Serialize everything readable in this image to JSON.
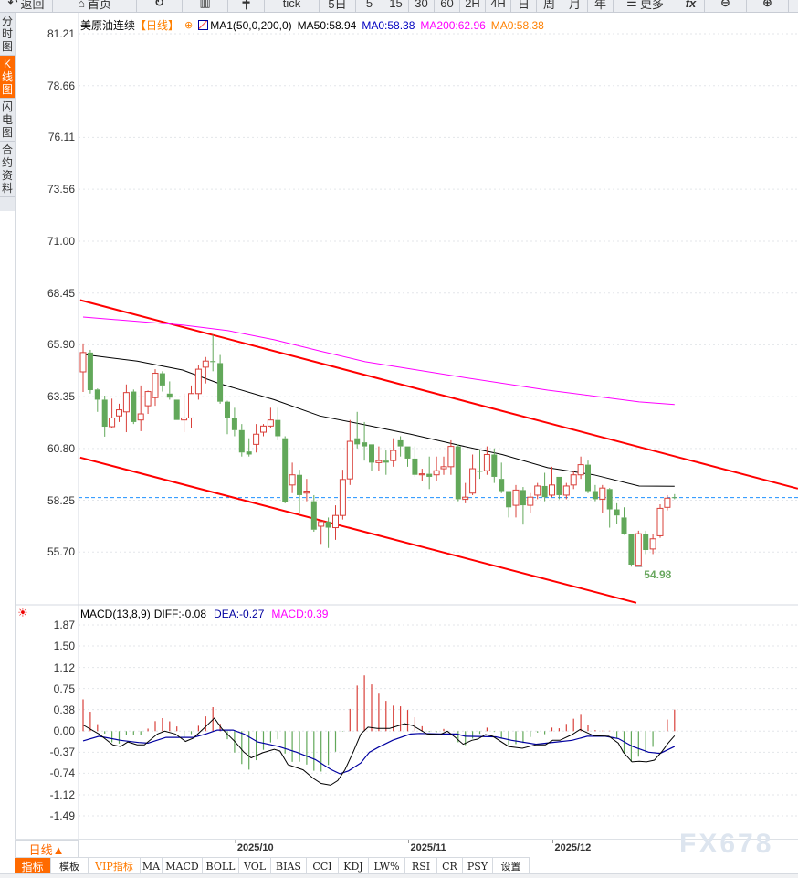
{
  "toolbar": {
    "items": [
      {
        "label": "返回",
        "icon": "back-arrow-icon",
        "w": 58
      },
      {
        "label": "首页",
        "icon": "home-icon",
        "w": 92
      },
      {
        "label": "",
        "icon": "refresh-icon",
        "w": 50
      },
      {
        "label": "",
        "icon": "bar-chart-icon",
        "w": 50
      },
      {
        "label": "",
        "icon": "candlestick-icon",
        "w": 40
      },
      {
        "label": "tick",
        "icon": "",
        "w": 60
      },
      {
        "label": "5日",
        "icon": "",
        "w": 40
      },
      {
        "label": "5",
        "icon": "",
        "w": 30
      },
      {
        "label": "15",
        "icon": "",
        "w": 28
      },
      {
        "label": "30",
        "icon": "",
        "w": 28
      },
      {
        "label": "60",
        "icon": "",
        "w": 28
      },
      {
        "label": "2H",
        "icon": "",
        "w": 28
      },
      {
        "label": "4H",
        "icon": "",
        "w": 28
      },
      {
        "label": "日",
        "icon": "",
        "w": 28
      },
      {
        "label": "周",
        "icon": "",
        "w": 28
      },
      {
        "label": "月",
        "icon": "",
        "w": 28
      },
      {
        "label": "年",
        "icon": "",
        "w": 28
      },
      {
        "label": "更多",
        "icon": "menu-icon",
        "w": 70
      },
      {
        "label": "fx",
        "icon": "",
        "w": 30
      },
      {
        "label": "",
        "icon": "zoom-out-icon",
        "w": 46
      },
      {
        "label": "",
        "icon": "zoom-in-icon",
        "w": 46
      }
    ]
  },
  "sidebar": {
    "items": [
      {
        "label": "分时图",
        "active": false
      },
      {
        "label": "K线图",
        "active": true
      },
      {
        "label": "闪电图",
        "active": false
      },
      {
        "label": "合约资料",
        "active": false
      }
    ]
  },
  "legend": {
    "symbol": "美原油连续",
    "period": "【日线】",
    "indicator": "MA1(50,0,200,0)",
    "ma50": "MA50:58.94",
    "ma0a": "MA0:58.38",
    "ma200": "MA200:62.96",
    "ma0b": "MA0:58.38"
  },
  "macd_legend": {
    "name": "MACD(13,8,9)",
    "diff": "DIFF:-0.08",
    "dea": "DEA:-0.27",
    "macd": "MACD:0.39"
  },
  "colors": {
    "up": "#d9403a",
    "down": "#62a85a",
    "ma50": "#000000",
    "ma200": "#ff00ff",
    "trend": "#ff0000",
    "last": "#1e90ff",
    "diff": "#000000",
    "dea": "#0000a0",
    "accent": "#ff6a00",
    "blue_label": "#0000c0",
    "orange_label": "#ff8000"
  },
  "chart_data": [
    {
      "type": "candlestick",
      "y_ticks": [
        "81.21",
        "78.66",
        "76.11",
        "73.56",
        "71.00",
        "68.45",
        "65.90",
        "63.35",
        "60.80",
        "58.25",
        "55.70"
      ],
      "ylim": [
        55.7,
        81.21
      ],
      "x_month_labels": [
        {
          "label": "2025/10",
          "index": 21
        },
        {
          "label": "2025/11",
          "index": 45
        },
        {
          "label": "2025/12",
          "index": 65
        }
      ],
      "last_price": 58.38,
      "min_label": "54.98",
      "min_index": 77,
      "ohlc": [
        [
          64.57,
          65.52,
          65.97,
          63.58
        ],
        [
          65.52,
          63.67,
          65.65,
          63.5
        ],
        [
          63.7,
          63.2,
          63.75,
          62.6
        ],
        [
          63.2,
          61.87,
          63.4,
          61.38
        ],
        [
          61.87,
          62.3,
          63.25,
          61.8
        ],
        [
          62.4,
          62.7,
          63.0,
          62.1
        ],
        [
          62.6,
          63.55,
          63.95,
          61.6
        ],
        [
          63.6,
          62.1,
          63.7,
          62.0
        ],
        [
          62.2,
          62.5,
          63.9,
          61.65
        ],
        [
          62.9,
          63.6,
          63.65,
          62.5
        ],
        [
          63.3,
          64.5,
          64.7,
          62.9
        ],
        [
          64.5,
          63.9,
          64.6,
          63.6
        ],
        [
          63.5,
          63.3,
          64.1,
          63.2
        ],
        [
          63.2,
          62.2,
          63.2,
          62.2
        ],
        [
          62.2,
          62.3,
          63.5,
          61.6
        ],
        [
          62.3,
          63.5,
          63.9,
          61.8
        ],
        [
          63.5,
          64.7,
          64.9,
          63.2
        ],
        [
          64.8,
          65.1,
          65.3,
          64.0
        ],
        [
          65.1,
          65.05,
          66.4,
          64.6
        ],
        [
          65.0,
          63.1,
          65.4,
          63.0
        ],
        [
          63.1,
          62.3,
          63.15,
          61.5
        ],
        [
          62.3,
          61.7,
          62.8,
          61.4
        ],
        [
          61.7,
          60.6,
          62.0,
          60.4
        ],
        [
          60.65,
          60.5,
          61.3,
          60.4
        ],
        [
          61.0,
          61.5,
          62.0,
          60.6
        ],
        [
          61.6,
          61.9,
          62.0,
          61.4
        ],
        [
          61.9,
          62.2,
          62.8,
          61.8
        ],
        [
          62.2,
          61.4,
          62.8,
          61.2
        ],
        [
          61.3,
          58.14,
          61.4,
          58.1
        ],
        [
          59.0,
          59.5,
          60.1,
          58.6
        ],
        [
          59.5,
          58.5,
          59.75,
          57.6
        ],
        [
          58.6,
          58.7,
          59.3,
          58.2
        ],
        [
          58.2,
          56.8,
          58.5,
          56.7
        ],
        [
          56.97,
          57.2,
          57.25,
          56.1
        ],
        [
          57.2,
          56.9,
          57.4,
          55.9
        ],
        [
          56.9,
          57.5,
          58.0,
          56.3
        ],
        [
          57.5,
          59.27,
          59.75,
          57.3
        ],
        [
          59.3,
          61.15,
          62.2,
          59.0
        ],
        [
          61.3,
          61.0,
          62.6,
          60.8
        ],
        [
          61.1,
          60.9,
          62.1,
          60.2
        ],
        [
          61.0,
          60.1,
          61.0,
          59.7
        ],
        [
          60.1,
          60.2,
          60.9,
          59.7
        ],
        [
          60.2,
          60.1,
          60.7,
          59.5
        ],
        [
          60.2,
          60.7,
          61.3,
          59.9
        ],
        [
          61.2,
          60.9,
          61.4,
          60.4
        ],
        [
          60.9,
          60.3,
          60.9,
          59.9
        ],
        [
          60.3,
          59.5,
          60.9,
          59.4
        ],
        [
          59.5,
          59.55,
          59.8,
          59.2
        ],
        [
          59.55,
          59.4,
          60.4,
          58.8
        ],
        [
          59.5,
          59.7,
          60.4,
          59.2
        ],
        [
          59.8,
          59.9,
          60.4,
          59.5
        ],
        [
          59.9,
          60.9,
          61.2,
          59.5
        ],
        [
          60.9,
          58.3,
          61.0,
          58.2
        ],
        [
          58.3,
          58.4,
          59.1,
          58.1
        ],
        [
          58.6,
          59.8,
          60.5,
          58.5
        ],
        [
          59.7,
          59.65,
          60.7,
          59.3
        ],
        [
          59.7,
          60.5,
          60.9,
          59.5
        ],
        [
          60.5,
          59.4,
          60.8,
          59.1
        ],
        [
          59.3,
          58.7,
          60.1,
          58.6
        ],
        [
          58.7,
          57.9,
          58.7,
          57.4
        ],
        [
          58.0,
          58.75,
          59.0,
          57.4
        ],
        [
          58.75,
          58.0,
          58.9,
          57.05
        ],
        [
          58.0,
          58.4,
          58.6,
          57.6
        ],
        [
          58.5,
          58.95,
          59.1,
          58.3
        ],
        [
          58.95,
          58.4,
          59.6,
          58.2
        ],
        [
          58.5,
          59.0,
          59.9,
          58.4
        ],
        [
          59.4,
          58.5,
          59.4,
          58.3
        ],
        [
          58.5,
          58.95,
          59.1,
          58.3
        ],
        [
          59.0,
          59.5,
          59.7,
          58.8
        ],
        [
          59.5,
          60.0,
          60.4,
          59.3
        ],
        [
          60.0,
          58.7,
          60.2,
          58.6
        ],
        [
          58.7,
          58.3,
          59.0,
          58.2
        ],
        [
          58.3,
          58.85,
          59.0,
          57.6
        ],
        [
          58.8,
          57.8,
          58.85,
          56.9
        ],
        [
          57.8,
          57.5,
          58.1,
          57.1
        ],
        [
          57.4,
          56.6,
          57.9,
          56.55
        ],
        [
          56.6,
          55.08,
          56.6,
          54.98
        ],
        [
          55.05,
          56.6,
          56.75,
          55.0
        ],
        [
          56.6,
          55.8,
          56.75,
          55.6
        ],
        [
          55.85,
          56.35,
          56.6,
          55.6
        ],
        [
          56.5,
          57.85,
          58.05,
          56.4
        ],
        [
          57.9,
          58.35,
          58.5,
          57.75
        ],
        [
          58.4,
          58.38,
          58.55,
          58.3
        ]
      ],
      "ma50": [
        [
          0,
          65.43
        ],
        [
          7.5,
          65.1
        ],
        [
          13.8,
          64.66
        ],
        [
          18.9,
          63.99
        ],
        [
          26.5,
          63.2
        ],
        [
          32.8,
          62.4
        ],
        [
          39.1,
          61.96
        ],
        [
          45.4,
          61.5
        ],
        [
          51.8,
          60.98
        ],
        [
          58.1,
          60.5
        ],
        [
          64.4,
          59.85
        ],
        [
          70.8,
          59.5
        ],
        [
          77.1,
          58.95
        ],
        [
          82,
          58.94
        ]
      ],
      "ma200": [
        [
          0,
          67.27
        ],
        [
          13.8,
          66.87
        ],
        [
          20.1,
          66.6
        ],
        [
          26.5,
          66.15
        ],
        [
          32.8,
          65.6
        ],
        [
          39.1,
          65.07
        ],
        [
          51.8,
          64.35
        ],
        [
          64.4,
          63.67
        ],
        [
          77.1,
          63.09
        ],
        [
          82,
          62.96
        ]
      ],
      "trendlines": [
        [
          [
            -0.4,
            68.1
          ],
          [
            99.1,
            58.82
          ]
        ],
        [
          [
            -0.4,
            60.35
          ],
          [
            76.7,
            53.2
          ]
        ]
      ]
    },
    {
      "type": "macd",
      "y_ticks": [
        "1.87",
        "1.50",
        "1.12",
        "0.75",
        "0.38",
        "0.00",
        "-0.37",
        "-0.74",
        "-1.12",
        "-1.49"
      ],
      "ylim": [
        -1.49,
        1.87
      ],
      "diff": [
        [
          0,
          0.11
        ],
        [
          2.2,
          -0.05
        ],
        [
          4.1,
          -0.24
        ],
        [
          5.2,
          -0.27
        ],
        [
          6.2,
          -0.19
        ],
        [
          7.5,
          -0.24
        ],
        [
          8.5,
          -0.24
        ],
        [
          10.3,
          -0.05
        ],
        [
          11.3,
          0.0
        ],
        [
          12.8,
          -0.05
        ],
        [
          14.2,
          -0.18
        ],
        [
          15.3,
          -0.12
        ],
        [
          17,
          0.08
        ],
        [
          18.2,
          0.23
        ],
        [
          19.2,
          0.05
        ],
        [
          21.1,
          -0.19
        ],
        [
          22.3,
          -0.37
        ],
        [
          23.3,
          -0.47
        ],
        [
          24.9,
          -0.38
        ],
        [
          26.5,
          -0.32
        ],
        [
          27.3,
          -0.35
        ],
        [
          28.4,
          -0.59
        ],
        [
          30.5,
          -0.68
        ],
        [
          31.9,
          -0.83
        ],
        [
          33,
          -0.92
        ],
        [
          34.3,
          -0.95
        ],
        [
          35.3,
          -0.87
        ],
        [
          36.3,
          -0.68
        ],
        [
          37.5,
          -0.35
        ],
        [
          38.5,
          -0.05
        ],
        [
          39.5,
          0.07
        ],
        [
          40.8,
          0.05
        ],
        [
          42.5,
          0.05
        ],
        [
          44.6,
          0.13
        ],
        [
          45.7,
          0.1
        ],
        [
          47.7,
          -0.05
        ],
        [
          49.5,
          -0.06
        ],
        [
          50.5,
          0.0
        ],
        [
          51.5,
          -0.1
        ],
        [
          52.7,
          -0.23
        ],
        [
          53.9,
          -0.16
        ],
        [
          54.7,
          -0.14
        ],
        [
          55.8,
          -0.06
        ],
        [
          56.8,
          -0.09
        ],
        [
          59,
          -0.27
        ],
        [
          60.9,
          -0.3
        ],
        [
          62.8,
          -0.24
        ],
        [
          64.1,
          -0.24
        ],
        [
          65.1,
          -0.16
        ],
        [
          66.1,
          -0.16
        ],
        [
          67.8,
          -0.06
        ],
        [
          68.9,
          0.03
        ],
        [
          70.8,
          -0.08
        ],
        [
          72.9,
          -0.09
        ],
        [
          74.2,
          -0.21
        ],
        [
          74.9,
          -0.37
        ],
        [
          76.1,
          -0.54
        ],
        [
          77.1,
          -0.53
        ],
        [
          78.1,
          -0.54
        ],
        [
          79.2,
          -0.51
        ],
        [
          80.3,
          -0.35
        ],
        [
          81.1,
          -0.21
        ],
        [
          82,
          -0.08
        ]
      ],
      "dea": [
        [
          0,
          -0.17
        ],
        [
          2.2,
          -0.09
        ],
        [
          5.2,
          -0.16
        ],
        [
          7.7,
          -0.2
        ],
        [
          9,
          -0.21
        ],
        [
          11.5,
          -0.11
        ],
        [
          15.3,
          -0.11
        ],
        [
          17,
          -0.05
        ],
        [
          18.6,
          0.02
        ],
        [
          20.8,
          0.02
        ],
        [
          22.3,
          -0.05
        ],
        [
          24.2,
          -0.19
        ],
        [
          27.1,
          -0.27
        ],
        [
          29.6,
          -0.37
        ],
        [
          32.2,
          -0.5
        ],
        [
          34.3,
          -0.67
        ],
        [
          35.6,
          -0.75
        ],
        [
          36.8,
          -0.7
        ],
        [
          38.5,
          -0.56
        ],
        [
          39.7,
          -0.37
        ],
        [
          41,
          -0.28
        ],
        [
          42.9,
          -0.16
        ],
        [
          45.4,
          -0.05
        ],
        [
          46.7,
          -0.04
        ],
        [
          49.5,
          -0.05
        ],
        [
          51.8,
          -0.05
        ],
        [
          53,
          -0.09
        ],
        [
          57.2,
          -0.1
        ],
        [
          59.4,
          -0.16
        ],
        [
          62.8,
          -0.23
        ],
        [
          65.7,
          -0.19
        ],
        [
          67.8,
          -0.16
        ],
        [
          69.9,
          -0.09
        ],
        [
          72.4,
          -0.09
        ],
        [
          74.2,
          -0.13
        ],
        [
          76.2,
          -0.27
        ],
        [
          78.4,
          -0.37
        ],
        [
          80,
          -0.39
        ],
        [
          82,
          -0.27
        ]
      ]
    }
  ],
  "bottom": {
    "period_label": "日线▲",
    "tabs": [
      {
        "label": "指标",
        "w": 40,
        "style": "active"
      },
      {
        "label": "模板",
        "w": 41,
        "style": ""
      },
      {
        "label": "VIP指标",
        "w": 57,
        "style": "vip"
      },
      {
        "label": "MA",
        "w": 24,
        "style": ""
      },
      {
        "label": "MACD",
        "w": 44,
        "style": ""
      },
      {
        "label": "BOLL",
        "w": 40,
        "style": ""
      },
      {
        "label": "VOL",
        "w": 35,
        "style": ""
      },
      {
        "label": "BIAS",
        "w": 39,
        "style": ""
      },
      {
        "label": "CCI",
        "w": 35,
        "style": ""
      },
      {
        "label": "KDJ",
        "w": 33,
        "style": ""
      },
      {
        "label": "LW%",
        "w": 40,
        "style": ""
      },
      {
        "label": "RSI",
        "w": 35,
        "style": ""
      },
      {
        "label": "CR",
        "w": 28,
        "style": ""
      },
      {
        "label": "PSY",
        "w": 33,
        "style": ""
      },
      {
        "label": "设置",
        "w": 40,
        "style": ""
      }
    ]
  },
  "watermark": "FX678"
}
